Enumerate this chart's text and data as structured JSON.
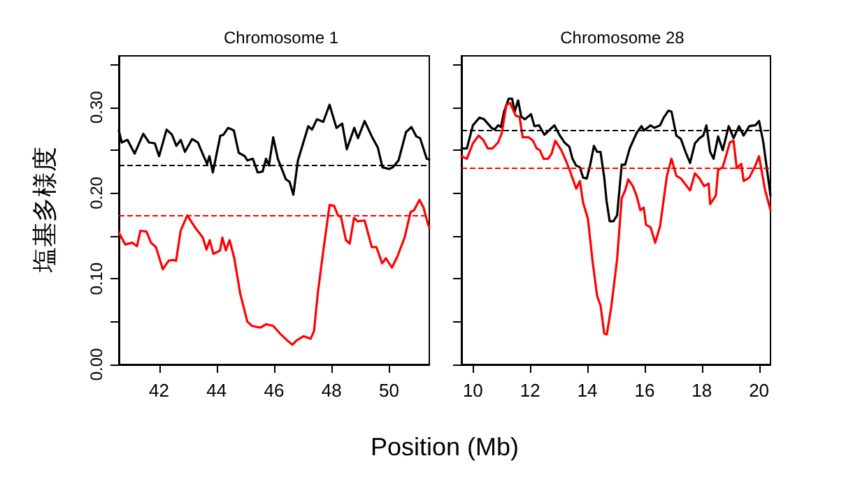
{
  "chart_data": [
    {
      "type": "line",
      "title": "Chromosome 1",
      "xlabel": "Position (Mb)",
      "ylabel": "塩基多様度",
      "xlim": [
        40.6,
        51.4
      ],
      "xticks": [
        42,
        44,
        46,
        48,
        50
      ],
      "ylim": [
        0,
        0.36
      ],
      "yticks": [
        {
          "value": 0,
          "label": "0.00"
        },
        {
          "value": 0.05,
          "label": null
        },
        {
          "value": 0.1,
          "label": "0.10"
        },
        {
          "value": 0.15,
          "label": null
        },
        {
          "value": 0.2,
          "label": "0.20"
        },
        {
          "value": 0.25,
          "label": null
        },
        {
          "value": 0.3,
          "label": "0.30"
        },
        {
          "value": 0.35,
          "label": null
        }
      ],
      "grid": false,
      "marker": "none",
      "line_style": "solid",
      "series": [
        {
          "color": "#000000",
          "x": [
            40.6,
            40.7,
            40.9,
            41.15,
            41.45,
            41.65,
            41.85,
            42.0,
            42.26,
            42.45,
            42.6,
            42.75,
            42.9,
            43.15,
            43.35,
            43.55,
            43.67,
            43.75,
            43.87,
            44.13,
            44.24,
            44.4,
            44.6,
            44.77,
            44.98,
            45.07,
            45.26,
            45.43,
            45.6,
            45.72,
            45.82,
            45.97,
            46.13,
            46.41,
            46.54,
            46.67,
            46.83,
            47.19,
            47.32,
            47.49,
            47.71,
            47.93,
            48.17,
            48.37,
            48.53,
            48.79,
            48.92,
            49.15,
            49.4,
            49.61,
            49.77,
            50.0,
            50.13,
            50.33,
            50.59,
            50.78,
            50.95,
            51.08,
            51.31,
            51.4
          ],
          "values": [
            0.273,
            0.259,
            0.262,
            0.246,
            0.269,
            0.259,
            0.258,
            0.243,
            0.274,
            0.268,
            0.255,
            0.262,
            0.248,
            0.263,
            0.259,
            0.243,
            0.234,
            0.243,
            0.224,
            0.267,
            0.268,
            0.276,
            0.273,
            0.247,
            0.243,
            0.238,
            0.24,
            0.224,
            0.225,
            0.24,
            0.232,
            0.265,
            0.24,
            0.216,
            0.213,
            0.198,
            0.238,
            0.278,
            0.274,
            0.286,
            0.283,
            0.303,
            0.276,
            0.281,
            0.251,
            0.276,
            0.264,
            0.284,
            0.266,
            0.253,
            0.23,
            0.228,
            0.23,
            0.238,
            0.271,
            0.277,
            0.266,
            0.264,
            0.24,
            0.239
          ]
        },
        {
          "color": "#ff0000",
          "x": [
            40.6,
            40.82,
            41.07,
            41.23,
            41.35,
            41.56,
            41.72,
            41.89,
            42.13,
            42.33,
            42.49,
            42.59,
            42.75,
            42.98,
            43.27,
            43.52,
            43.65,
            43.76,
            43.89,
            44.12,
            44.2,
            44.32,
            44.45,
            44.61,
            44.82,
            45.07,
            45.23,
            45.53,
            45.72,
            45.97,
            46.21,
            46.46,
            46.64,
            46.78,
            47.03,
            47.27,
            47.39,
            47.52,
            47.71,
            47.93,
            48.09,
            48.22,
            48.33,
            48.5,
            48.63,
            48.78,
            48.91,
            49.15,
            49.4,
            49.56,
            49.76,
            49.89,
            50.1,
            50.29,
            50.54,
            50.75,
            50.87,
            51.06,
            51.2,
            51.36,
            51.4
          ],
          "values": [
            0.154,
            0.14,
            0.142,
            0.138,
            0.156,
            0.155,
            0.142,
            0.137,
            0.111,
            0.121,
            0.122,
            0.121,
            0.156,
            0.174,
            0.159,
            0.148,
            0.134,
            0.145,
            0.129,
            0.133,
            0.148,
            0.133,
            0.145,
            0.125,
            0.083,
            0.05,
            0.045,
            0.043,
            0.047,
            0.045,
            0.036,
            0.028,
            0.023,
            0.028,
            0.033,
            0.03,
            0.039,
            0.083,
            0.132,
            0.186,
            0.185,
            0.174,
            0.172,
            0.145,
            0.141,
            0.171,
            0.167,
            0.168,
            0.137,
            0.137,
            0.118,
            0.124,
            0.113,
            0.126,
            0.148,
            0.178,
            0.18,
            0.192,
            0.183,
            0.163,
            0.16
          ]
        }
      ],
      "ref_lines": [
        {
          "axis": "y",
          "value": 0.232,
          "color": "#000000",
          "line_style": "dashed"
        },
        {
          "axis": "y",
          "value": 0.174,
          "color": "#ff0000",
          "line_style": "dashed"
        }
      ]
    },
    {
      "type": "line",
      "title": "Chromosome 28",
      "xlim": [
        9.6,
        20.4
      ],
      "xticks": [
        10,
        12,
        14,
        16,
        18,
        20
      ],
      "ylim": [
        0,
        0.36
      ],
      "yticks": [
        {
          "value": 0,
          "label": null
        },
        {
          "value": 0.05,
          "label": null
        },
        {
          "value": 0.1,
          "label": null
        },
        {
          "value": 0.15,
          "label": null
        },
        {
          "value": 0.2,
          "label": null
        },
        {
          "value": 0.25,
          "label": null
        },
        {
          "value": 0.3,
          "label": null
        },
        {
          "value": 0.35,
          "label": null
        }
      ],
      "tick_labels": "x",
      "grid": false,
      "marker": "none",
      "line_style": "solid",
      "series": [
        {
          "color": "#000000",
          "x": [
            9.6,
            9.79,
            10.0,
            10.23,
            10.39,
            10.65,
            10.76,
            10.88,
            10.98,
            11.09,
            11.25,
            11.37,
            11.46,
            11.58,
            11.69,
            11.82,
            12.03,
            12.15,
            12.31,
            12.5,
            12.63,
            12.85,
            13.04,
            13.2,
            13.37,
            13.48,
            13.61,
            13.74,
            13.85,
            13.98,
            14.1,
            14.23,
            14.34,
            14.46,
            14.59,
            14.67,
            14.78,
            14.91,
            15.04,
            15.2,
            15.32,
            15.48,
            15.72,
            15.89,
            15.98,
            16.21,
            16.34,
            16.54,
            16.67,
            16.83,
            16.94,
            17.11,
            17.27,
            17.43,
            17.59,
            17.76,
            17.92,
            18.05,
            18.16,
            18.29,
            18.41,
            18.57,
            18.73,
            18.94,
            19.11,
            19.3,
            19.46,
            19.66,
            19.87,
            20.0,
            20.15,
            20.4
          ],
          "values": [
            0.252,
            0.252,
            0.279,
            0.288,
            0.286,
            0.276,
            0.274,
            0.279,
            0.277,
            0.295,
            0.31,
            0.31,
            0.295,
            0.308,
            0.289,
            0.286,
            0.292,
            0.278,
            0.279,
            0.268,
            0.272,
            0.279,
            0.267,
            0.259,
            0.254,
            0.24,
            0.232,
            0.23,
            0.218,
            0.217,
            0.233,
            0.255,
            0.248,
            0.248,
            0.218,
            0.191,
            0.167,
            0.167,
            0.174,
            0.233,
            0.233,
            0.252,
            0.27,
            0.278,
            0.273,
            0.279,
            0.276,
            0.279,
            0.288,
            0.296,
            0.295,
            0.267,
            0.263,
            0.248,
            0.235,
            0.258,
            0.264,
            0.267,
            0.279,
            0.248,
            0.24,
            0.266,
            0.25,
            0.278,
            0.264,
            0.278,
            0.267,
            0.278,
            0.279,
            0.284,
            0.259,
            0.197
          ]
        },
        {
          "color": "#ff0000",
          "x": [
            9.6,
            9.79,
            10.0,
            10.2,
            10.36,
            10.52,
            10.68,
            10.88,
            11.01,
            11.17,
            11.3,
            11.5,
            11.63,
            11.74,
            11.95,
            12.1,
            12.23,
            12.34,
            12.47,
            12.63,
            12.75,
            12.88,
            13.09,
            13.25,
            13.41,
            13.61,
            13.74,
            13.85,
            14.02,
            14.18,
            14.34,
            14.46,
            14.59,
            14.68,
            14.83,
            15.04,
            15.2,
            15.32,
            15.43,
            15.59,
            15.72,
            15.85,
            15.97,
            16.05,
            16.21,
            16.37,
            16.54,
            16.78,
            16.94,
            17.11,
            17.27,
            17.43,
            17.59,
            17.76,
            17.92,
            18.08,
            18.24,
            18.29,
            18.49,
            18.57,
            18.73,
            18.98,
            19.11,
            19.22,
            19.38,
            19.46,
            19.66,
            19.87,
            20.0,
            20.2,
            20.4
          ],
          "values": [
            0.243,
            0.24,
            0.258,
            0.267,
            0.262,
            0.252,
            0.252,
            0.259,
            0.27,
            0.303,
            0.305,
            0.29,
            0.289,
            0.265,
            0.265,
            0.261,
            0.252,
            0.25,
            0.24,
            0.24,
            0.246,
            0.261,
            0.25,
            0.238,
            0.224,
            0.205,
            0.214,
            0.189,
            0.17,
            0.121,
            0.08,
            0.069,
            0.036,
            0.035,
            0.066,
            0.123,
            0.194,
            0.203,
            0.216,
            0.208,
            0.197,
            0.18,
            0.183,
            0.163,
            0.16,
            0.142,
            0.161,
            0.22,
            0.24,
            0.22,
            0.217,
            0.21,
            0.203,
            0.223,
            0.217,
            0.208,
            0.211,
            0.187,
            0.197,
            0.227,
            0.23,
            0.259,
            0.261,
            0.229,
            0.234,
            0.214,
            0.218,
            0.232,
            0.243,
            0.205,
            0.18
          ]
        }
      ],
      "ref_lines": [
        {
          "axis": "y",
          "value": 0.274,
          "color": "#000000",
          "line_style": "dashed"
        },
        {
          "axis": "y",
          "value": 0.229,
          "color": "#ff0000",
          "line_style": "dashed"
        }
      ]
    }
  ]
}
